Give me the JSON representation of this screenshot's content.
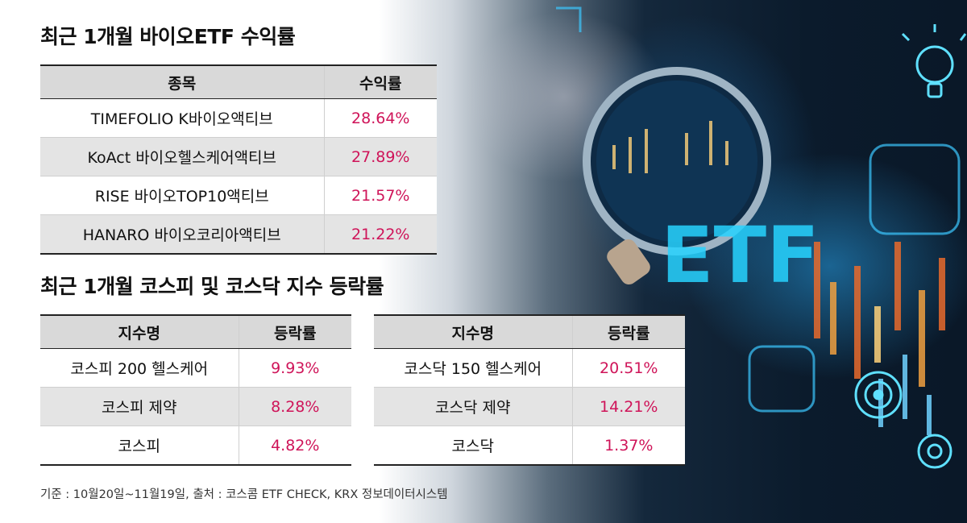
{
  "etf_section": {
    "title": "최근 1개월 바이오ETF 수익률",
    "headers": [
      "종목",
      "수익률"
    ],
    "rows": [
      {
        "name": "TIMEFOLIO K바이오액티브",
        "rate": "28.64%"
      },
      {
        "name": "KoAct 바이오헬스케어액티브",
        "rate": "27.89%"
      },
      {
        "name": "RISE 바이오TOP10액티브",
        "rate": "21.57%"
      },
      {
        "name": "HANARO 바이오코리아액티브",
        "rate": "21.22%"
      }
    ]
  },
  "index_section": {
    "title": "최근 1개월 코스피 및 코스닥 지수 등락률",
    "kospi": {
      "headers": [
        "지수명",
        "등락률"
      ],
      "rows": [
        {
          "name": "코스피 200 헬스케어",
          "rate": "9.93%"
        },
        {
          "name": "코스피 제약",
          "rate": "8.28%"
        },
        {
          "name": "코스피",
          "rate": "4.82%"
        }
      ]
    },
    "kosdaq": {
      "headers": [
        "지수명",
        "등락률"
      ],
      "rows": [
        {
          "name": "코스닥 150 헬스케어",
          "rate": "20.51%"
        },
        {
          "name": "코스닥 제약",
          "rate": "14.21%"
        },
        {
          "name": "코스닥",
          "rate": "1.37%"
        }
      ]
    }
  },
  "footer": {
    "source": "기준 : 10월20일~11월19일, 출처 : 코스콤 ETF CHECK, KRX 정보데이터시스템"
  },
  "background": {
    "magnifier_text": "ETF",
    "icons": [
      "magnifier-icon",
      "lightbulb-icon",
      "target-icon",
      "gear-icon"
    ]
  },
  "colors": {
    "rate_text": "#cf1459",
    "header_fill": "#d9d9d9",
    "alt_row_fill": "#e4e4e4"
  }
}
